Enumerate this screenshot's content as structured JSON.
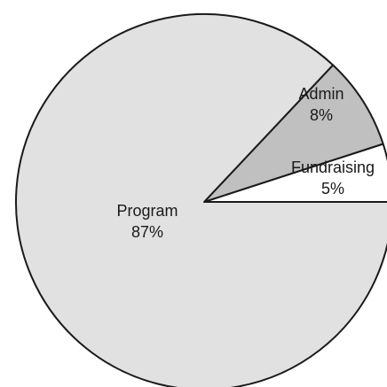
{
  "chart_data": {
    "type": "pie",
    "title": "",
    "start_angle_deg": 0,
    "direction": "counterclockwise",
    "slices": [
      {
        "label": "Fundraising",
        "value": 5,
        "value_label": "5%",
        "color": "#ffffff"
      },
      {
        "label": "Admin",
        "value": 8,
        "value_label": "8%",
        "color": "#c0c0c0"
      },
      {
        "label": "Program",
        "value": 87,
        "value_label": "87%",
        "color": "#e1e1e1"
      }
    ],
    "stroke_color": "#1a1a1a"
  }
}
